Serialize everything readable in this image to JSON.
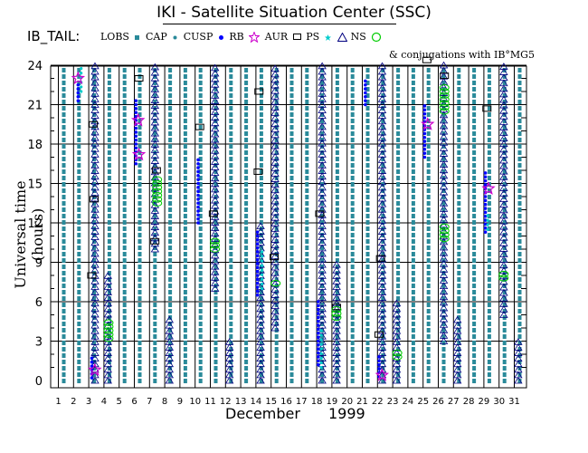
{
  "title": "IKI - Satellite Situation Center (SSC)",
  "satellite_label": "IB_TAIL:",
  "legend": [
    {
      "label": "LOBS",
      "symbol": "lobs-square",
      "color": "#2a8a9a"
    },
    {
      "label": "CAP",
      "symbol": "cap-dot",
      "color": "#2a8a9a"
    },
    {
      "label": "CUSP",
      "symbol": "cusp-dot",
      "color": "#0000ff"
    },
    {
      "label": "RB",
      "symbol": "rb-star",
      "color": "#cc00cc"
    },
    {
      "label": "AUR",
      "symbol": "aur-square",
      "color": "#000000"
    },
    {
      "label": "PS",
      "symbol": "ps-star",
      "color": "#00cccc"
    },
    {
      "label": "NS",
      "symbol": "ns-triangle",
      "color": "#000080"
    },
    {
      "label": "",
      "symbol": "conj-circle",
      "color": "#00cc00"
    }
  ],
  "conjugation_note": "& conjugations with IB°MG5",
  "chart_data": {
    "type": "scatter",
    "title": "IKI - Satellite Situation Center (SSC)",
    "xlabel": "December    1999",
    "x_month": "December",
    "x_year": "1999",
    "ylabel": "Universal time (hours)",
    "xlim": [
      1,
      31
    ],
    "ylim": [
      0,
      24
    ],
    "x_ticks": [
      1,
      2,
      3,
      4,
      5,
      6,
      7,
      8,
      9,
      10,
      11,
      12,
      13,
      14,
      15,
      16,
      17,
      18,
      19,
      20,
      21,
      22,
      23,
      24,
      25,
      26,
      27,
      28,
      29,
      30,
      31
    ],
    "y_ticks": [
      0,
      3,
      6,
      9,
      12,
      15,
      18,
      21,
      24
    ],
    "grid": true,
    "colors": {
      "lobs": "#2a8a9a",
      "cusp": "#0000ff",
      "rb": "#cc00cc",
      "aur": "#000000",
      "ps": "#00cccc",
      "ns": "#000080",
      "conj": "#00cc00",
      "grid": "#000000"
    },
    "lobs_columns": [
      1,
      2,
      3,
      4,
      5,
      6,
      7,
      8,
      9,
      10,
      11,
      12,
      13,
      14,
      15,
      16,
      17,
      18,
      19,
      20,
      21,
      22,
      23,
      24,
      25,
      26,
      27,
      28,
      29,
      30,
      31
    ],
    "ns_segments": [
      {
        "day": 3.35,
        "from": 0,
        "to": 24
      },
      {
        "day": 4.2,
        "from": 0,
        "to": 8
      },
      {
        "day": 7.3,
        "from": 10,
        "to": 24
      },
      {
        "day": 8.25,
        "from": 0,
        "to": 5
      },
      {
        "day": 11.25,
        "from": 7,
        "to": 24
      },
      {
        "day": 12.2,
        "from": 0,
        "to": 3
      },
      {
        "day": 14.25,
        "from": 0,
        "to": 12
      },
      {
        "day": 15.2,
        "from": 4,
        "to": 24
      },
      {
        "day": 18.3,
        "from": 0,
        "to": 24
      },
      {
        "day": 19.25,
        "from": 0,
        "to": 9
      },
      {
        "day": 22.25,
        "from": 0,
        "to": 24
      },
      {
        "day": 23.2,
        "from": 0,
        "to": 6
      },
      {
        "day": 26.3,
        "from": 3,
        "to": 24
      },
      {
        "day": 27.2,
        "from": 0,
        "to": 5
      },
      {
        "day": 30.25,
        "from": 5,
        "to": 24
      },
      {
        "day": 31.2,
        "from": 0,
        "to": 3
      }
    ],
    "cusp_segments": [
      {
        "day": 2.3,
        "from": 21.3,
        "to": 22.7
      },
      {
        "day": 3.2,
        "from": 0.2,
        "to": 1.8
      },
      {
        "day": 6.1,
        "from": 16.5,
        "to": 21.5
      },
      {
        "day": 10.2,
        "from": 12,
        "to": 17
      },
      {
        "day": 14.1,
        "from": 6.5,
        "to": 11.5
      },
      {
        "day": 18.1,
        "from": 1.2,
        "to": 6.2
      },
      {
        "day": 21.2,
        "from": 21,
        "to": 23
      },
      {
        "day": 22.1,
        "from": 0.3,
        "to": 2
      },
      {
        "day": 25.1,
        "from": 17,
        "to": 21
      },
      {
        "day": 29.1,
        "from": 11.3,
        "to": 16
      }
    ],
    "ps_segments": [
      {
        "day": 2.5,
        "from": 22,
        "to": 24
      },
      {
        "day": 14.4,
        "from": 7,
        "to": 10
      },
      {
        "day": 18.3,
        "from": 1,
        "to": 4
      },
      {
        "day": 29.25,
        "from": 11.5,
        "to": 12.8
      }
    ],
    "rb_points": [
      {
        "day": 2.3,
        "hour": 23
      },
      {
        "day": 3.4,
        "hour": 0.8
      },
      {
        "day": 6.25,
        "hour": 19.8
      },
      {
        "day": 6.3,
        "hour": 17.2
      },
      {
        "day": 22.3,
        "hour": 0.4
      },
      {
        "day": 25.3,
        "hour": 19.5
      },
      {
        "day": 29.3,
        "hour": 14.6
      }
    ],
    "aur_points": [
      {
        "day": 3.2,
        "hour": 8
      },
      {
        "day": 3.35,
        "hour": 13.8
      },
      {
        "day": 3.3,
        "hour": 19.5
      },
      {
        "day": 6.3,
        "hour": 23
      },
      {
        "day": 7.35,
        "hour": 10.6
      },
      {
        "day": 7.45,
        "hour": 16
      },
      {
        "day": 10.3,
        "hour": 19.3
      },
      {
        "day": 11.2,
        "hour": 12.7
      },
      {
        "day": 14.2,
        "hour": 22
      },
      {
        "day": 14.15,
        "hour": 15.9
      },
      {
        "day": 15.2,
        "hour": 9.4
      },
      {
        "day": 18.2,
        "hour": 12.7
      },
      {
        "day": 19.3,
        "hour": 5.6
      },
      {
        "day": 22.1,
        "hour": 3.5
      },
      {
        "day": 22.2,
        "hour": 9.3
      },
      {
        "day": 25.25,
        "hour": 24.4
      },
      {
        "day": 26.4,
        "hour": 23.2
      },
      {
        "day": 29.2,
        "hour": 20.7
      }
    ],
    "conj_clusters": [
      {
        "day": 4.3,
        "from": 3.2,
        "to": 4.6
      },
      {
        "day": 7.5,
        "from": 13.5,
        "to": 15.5
      },
      {
        "day": 11.3,
        "from": 10,
        "to": 10.8
      },
      {
        "day": 15.3,
        "from": 7.4,
        "to": 7.6
      },
      {
        "day": 19.3,
        "from": 4.8,
        "to": 5.4
      },
      {
        "day": 23.3,
        "from": 1.8,
        "to": 2.2
      },
      {
        "day": 26.4,
        "from": 10.8,
        "to": 11.9
      },
      {
        "day": 26.4,
        "from": 20.5,
        "to": 22.5
      },
      {
        "day": 30.3,
        "from": 7.8,
        "to": 8.3
      }
    ]
  }
}
